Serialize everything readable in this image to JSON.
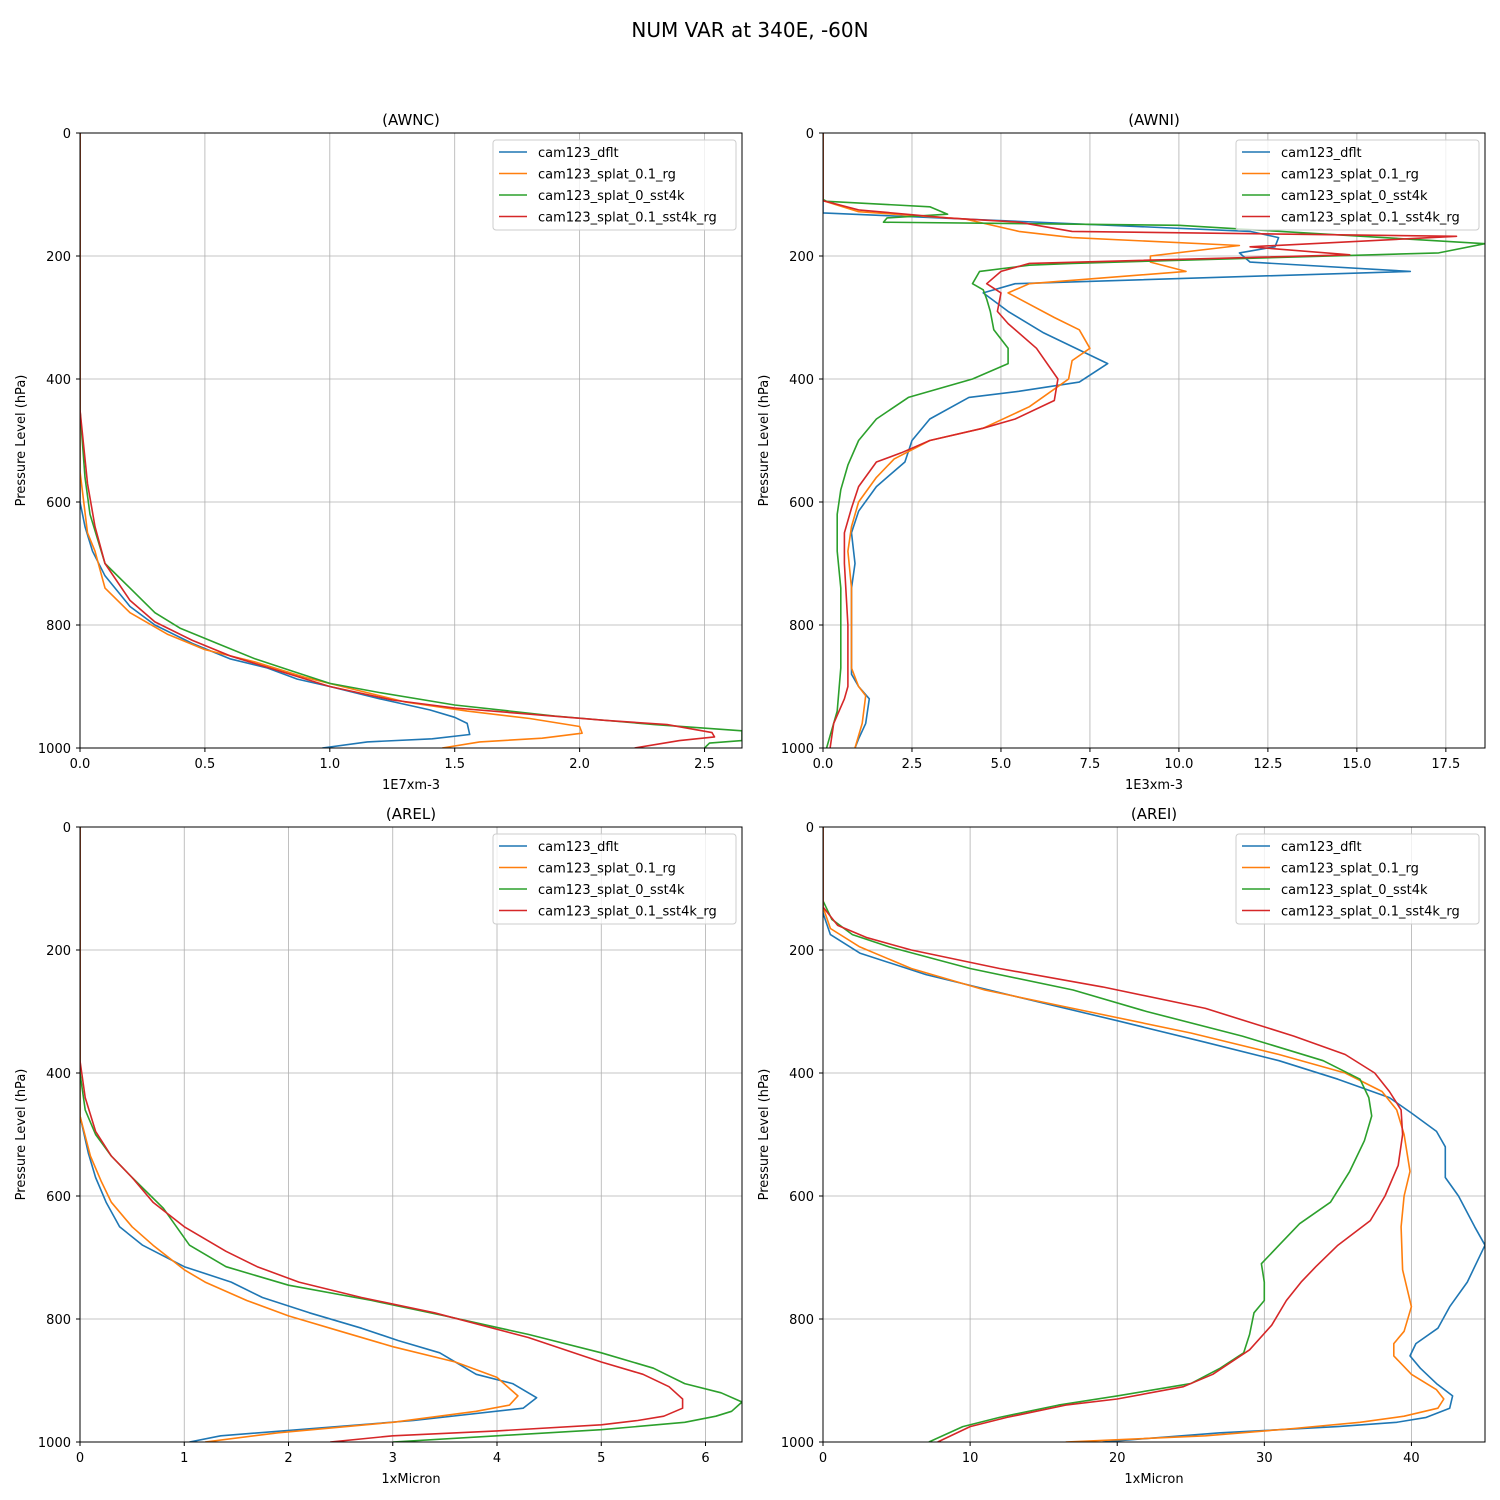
{
  "figure": {
    "suptitle": "NUM VAR at 340E, -60N"
  },
  "series_colors": {
    "cam123_dflt": "#1f77b4",
    "cam123_splat_0.1_rg": "#ff7f0e",
    "cam123_splat_0_sst4k": "#2ca02c",
    "cam123_splat_0.1_sst4k_rg": "#d62728"
  },
  "chart_data": [
    {
      "type": "line",
      "title": "(AWNC)",
      "xlabel": "1E7xm-3",
      "ylabel": "Pressure Level (hPa)",
      "xlim": [
        0,
        2.65
      ],
      "ylim": [
        1000,
        0
      ],
      "xticks": [
        0.0,
        0.5,
        1.0,
        1.5,
        2.0,
        2.5
      ],
      "xtick_labels": [
        "0.0",
        "0.5",
        "1.0",
        "1.5",
        "2.0",
        "2.5"
      ],
      "yticks": [
        0,
        200,
        400,
        600,
        800,
        1000
      ],
      "ytick_labels": [
        "0",
        "200",
        "400",
        "600",
        "800",
        "1000"
      ],
      "grid": true,
      "legend": "upper right",
      "series": [
        {
          "name": "cam123_dflt",
          "x": [
            0,
            0,
            0,
            0.02,
            0.05,
            0.1,
            0.2,
            0.3,
            0.45,
            0.6,
            0.75,
            0.87,
            1.0,
            1.2,
            1.4,
            1.5,
            1.55,
            1.56,
            1.41,
            1.15,
            0.97
          ],
          "y": [
            0,
            500,
            600,
            640,
            680,
            720,
            770,
            800,
            830,
            855,
            870,
            888,
            900,
            920,
            938,
            950,
            960,
            978,
            985,
            990,
            1000
          ]
        },
        {
          "name": "cam123_splat_0.1_rg",
          "x": [
            0,
            0,
            0.03,
            0.06,
            0.1,
            0.2,
            0.35,
            0.5,
            0.7,
            0.9,
            1.1,
            1.3,
            1.55,
            1.8,
            2.0,
            2.01,
            1.85,
            1.6,
            1.45
          ],
          "y": [
            0,
            550,
            650,
            680,
            740,
            780,
            815,
            840,
            860,
            885,
            905,
            925,
            940,
            952,
            965,
            976,
            984,
            990,
            1000
          ]
        },
        {
          "name": "cam123_splat_0_sst4k",
          "x": [
            0,
            0,
            0.02,
            0.04,
            0.07,
            0.1,
            0.2,
            0.3,
            0.4,
            0.55,
            0.7,
            0.85,
            1.0,
            1.2,
            1.5,
            1.9,
            2.3,
            2.65,
            2.65,
            2.52,
            2.5
          ],
          "y": [
            0,
            450,
            560,
            620,
            660,
            700,
            740,
            780,
            805,
            830,
            855,
            875,
            895,
            910,
            930,
            948,
            962,
            972,
            988,
            992,
            1000
          ]
        },
        {
          "name": "cam123_splat_0.1_sst4k_rg",
          "x": [
            0,
            0,
            0.03,
            0.06,
            0.1,
            0.2,
            0.3,
            0.45,
            0.6,
            0.8,
            1.0,
            1.25,
            1.5,
            1.8,
            2.1,
            2.35,
            2.53,
            2.54,
            2.4,
            2.22
          ],
          "y": [
            0,
            450,
            570,
            640,
            700,
            760,
            795,
            825,
            850,
            875,
            900,
            922,
            935,
            945,
            955,
            962,
            975,
            982,
            988,
            1000
          ]
        }
      ]
    },
    {
      "type": "line",
      "title": "(AWNI)",
      "xlabel": "1E3xm-3",
      "ylabel": "Pressure Level (hPa)",
      "xlim": [
        0,
        18.6
      ],
      "ylim": [
        1000,
        0
      ],
      "xticks": [
        0.0,
        2.5,
        5.0,
        7.5,
        10.0,
        12.5,
        15.0,
        17.5
      ],
      "xtick_labels": [
        "0.0",
        "2.5",
        "5.0",
        "7.5",
        "10.0",
        "12.5",
        "15.0",
        "17.5"
      ],
      "yticks": [
        0,
        200,
        400,
        600,
        800,
        1000
      ],
      "ytick_labels": [
        "0",
        "200",
        "400",
        "600",
        "800",
        "1000"
      ],
      "grid": true,
      "legend": "upper right",
      "series": [
        {
          "name": "cam123_dflt",
          "x": [
            0,
            0,
            12.0,
            12.8,
            12.7,
            11.7,
            12.0,
            16.5,
            5.4,
            4.5,
            5.2,
            6.2,
            8.0,
            7.2,
            5.5,
            4.1,
            3.0,
            2.5,
            2.3,
            1.5,
            1.0,
            0.8,
            0.9,
            0.8,
            0.8,
            1.0,
            1.3,
            1.2,
            1.0,
            0.9
          ],
          "y": [
            0,
            130,
            160,
            170,
            185,
            195,
            210,
            225,
            245,
            260,
            290,
            325,
            375,
            405,
            420,
            430,
            465,
            500,
            535,
            575,
            615,
            650,
            700,
            740,
            880,
            900,
            920,
            960,
            985,
            1000
          ]
        },
        {
          "name": "cam123_splat_0.1_rg",
          "x": [
            0,
            0,
            1.0,
            4.0,
            5.5,
            7.0,
            11.7,
            9.2,
            9.2,
            10.2,
            5.8,
            5.2,
            6.5,
            7.2,
            7.5,
            7.0,
            6.9,
            5.8,
            4.5,
            3.0,
            2.0,
            1.5,
            1.0,
            0.8,
            0.7,
            0.8,
            0.8,
            1.0,
            1.2,
            1.1,
            0.9
          ],
          "y": [
            0,
            110,
            128,
            140,
            160,
            170,
            183,
            200,
            210,
            225,
            245,
            260,
            300,
            320,
            350,
            370,
            400,
            445,
            480,
            500,
            530,
            560,
            600,
            640,
            680,
            740,
            870,
            900,
            915,
            960,
            1000
          ]
        },
        {
          "name": "cam123_splat_0_sst4k",
          "x": [
            0,
            0,
            0.1,
            3.0,
            3.5,
            1.8,
            1.7,
            10.0,
            18.6,
            17.3,
            7.0,
            5.8,
            4.4,
            4.2,
            4.5,
            4.6,
            4.7,
            4.8,
            5.2,
            5.2,
            4.2,
            2.4,
            1.5,
            1.0,
            0.7,
            0.5,
            0.4,
            0.4,
            0.5,
            0.5,
            0.5,
            0.4,
            0.2,
            0.1
          ],
          "y": [
            0,
            108,
            111,
            120,
            132,
            138,
            145,
            150,
            180,
            195,
            212,
            215,
            225,
            245,
            255,
            270,
            290,
            320,
            350,
            375,
            400,
            430,
            465,
            500,
            540,
            580,
            620,
            680,
            740,
            800,
            870,
            940,
            980,
            1000
          ]
        },
        {
          "name": "cam123_splat_0.1_sst4k_rg",
          "x": [
            0,
            0,
            1.0,
            3.5,
            5.5,
            7.0,
            17.8,
            12.0,
            14.8,
            5.8,
            5.0,
            4.6,
            5.0,
            4.9,
            5.2,
            6.0,
            6.6,
            6.5,
            5.4,
            4.5,
            3.0,
            2.2,
            1.5,
            1.0,
            0.8,
            0.6,
            0.6,
            0.7,
            0.7,
            0.6,
            0.3,
            0.2
          ],
          "y": [
            0,
            110,
            125,
            138,
            145,
            160,
            168,
            185,
            198,
            212,
            225,
            245,
            260,
            290,
            310,
            350,
            400,
            435,
            465,
            480,
            500,
            520,
            535,
            575,
            610,
            650,
            700,
            800,
            900,
            920,
            960,
            1000
          ]
        }
      ]
    },
    {
      "type": "line",
      "title": "(AREL)",
      "xlabel": "1xMicron",
      "ylabel": "Pressure Level (hPa)",
      "xlim": [
        0,
        6.35
      ],
      "ylim": [
        1000,
        0
      ],
      "xticks": [
        0,
        1,
        2,
        3,
        4,
        5,
        6
      ],
      "xtick_labels": [
        "0",
        "1",
        "2",
        "3",
        "4",
        "5",
        "6"
      ],
      "yticks": [
        0,
        200,
        400,
        600,
        800,
        1000
      ],
      "ytick_labels": [
        "0",
        "200",
        "400",
        "600",
        "800",
        "1000"
      ],
      "grid": true,
      "legend": "upper right",
      "series": [
        {
          "name": "cam123_dflt",
          "x": [
            0,
            0,
            0.08,
            0.15,
            0.25,
            0.38,
            0.6,
            1.0,
            1.45,
            1.75,
            2.2,
            2.7,
            3.05,
            3.45,
            3.65,
            3.8,
            4.15,
            4.38,
            4.25,
            3.2,
            1.35,
            1.05
          ],
          "y": [
            0,
            470,
            530,
            570,
            610,
            650,
            680,
            715,
            740,
            765,
            790,
            815,
            835,
            855,
            875,
            890,
            905,
            928,
            945,
            965,
            990,
            1000
          ]
        },
        {
          "name": "cam123_splat_0.1_rg",
          "x": [
            0,
            0,
            0.1,
            0.2,
            0.3,
            0.5,
            0.7,
            1.0,
            1.2,
            1.6,
            2.0,
            2.5,
            3.0,
            3.6,
            4.0,
            4.2,
            4.12,
            3.8,
            3.0,
            1.9,
            1.2
          ],
          "y": [
            0,
            470,
            535,
            575,
            610,
            650,
            680,
            720,
            740,
            770,
            795,
            820,
            845,
            870,
            895,
            925,
            940,
            950,
            968,
            985,
            1000
          ]
        },
        {
          "name": "cam123_splat_0_sst4k",
          "x": [
            0,
            0,
            0.05,
            0.15,
            0.3,
            0.5,
            0.8,
            1.05,
            1.4,
            2.0,
            2.8,
            3.5,
            4.3,
            5.0,
            5.5,
            5.8,
            6.15,
            6.35,
            6.25,
            6.1,
            5.8,
            5.0,
            4.0,
            3.0
          ],
          "y": [
            0,
            400,
            460,
            500,
            535,
            570,
            620,
            680,
            715,
            745,
            770,
            795,
            825,
            855,
            880,
            905,
            920,
            935,
            950,
            958,
            968,
            980,
            990,
            1000
          ]
        },
        {
          "name": "cam123_splat_0.1_sst4k_rg",
          "x": [
            0,
            0,
            0.05,
            0.15,
            0.3,
            0.5,
            0.7,
            1.0,
            1.4,
            1.7,
            2.1,
            2.7,
            3.4,
            4.3,
            5.0,
            5.4,
            5.65,
            5.78,
            5.78,
            5.6,
            5.35,
            5.0,
            4.0,
            3.0,
            2.4
          ],
          "y": [
            0,
            380,
            440,
            495,
            535,
            570,
            610,
            650,
            690,
            715,
            740,
            765,
            790,
            830,
            870,
            890,
            910,
            930,
            945,
            958,
            965,
            972,
            982,
            990,
            1000
          ]
        }
      ]
    },
    {
      "type": "line",
      "title": "(AREI)",
      "xlabel": "1xMicron",
      "ylabel": "Pressure Level (hPa)",
      "xlim": [
        0,
        45
      ],
      "ylim": [
        1000,
        0
      ],
      "xticks": [
        0,
        10,
        20,
        30,
        40
      ],
      "xtick_labels": [
        "0",
        "10",
        "20",
        "30",
        "40"
      ],
      "yticks": [
        0,
        200,
        400,
        600,
        800,
        1000
      ],
      "ytick_labels": [
        "0",
        "200",
        "400",
        "600",
        "800",
        "1000"
      ],
      "grid": true,
      "legend": "upper right",
      "series": [
        {
          "name": "cam123_dflt",
          "x": [
            0,
            0,
            0.5,
            2.5,
            7.0,
            13.0,
            20.0,
            26.0,
            31.0,
            35.0,
            38.5,
            40.0,
            41.7,
            42.3,
            42.3,
            43.2,
            44.3,
            45.0,
            43.8,
            42.6,
            41.8,
            40.3,
            39.9,
            40.6,
            41.7,
            42.8,
            42.6,
            41.0,
            39.0,
            35.0,
            27.0,
            19.0
          ],
          "y": [
            0,
            140,
            175,
            205,
            240,
            275,
            315,
            350,
            380,
            410,
            440,
            465,
            495,
            520,
            570,
            600,
            650,
            680,
            740,
            780,
            815,
            840,
            860,
            880,
            905,
            925,
            945,
            960,
            968,
            975,
            985,
            1000
          ]
        },
        {
          "name": "cam123_splat_0.1_rg",
          "x": [
            0,
            0,
            0.5,
            2.5,
            6.0,
            11.0,
            18.0,
            25.0,
            31.0,
            35.5,
            38.0,
            39.0,
            39.5,
            39.9,
            39.5,
            39.3,
            39.4,
            40.0,
            39.5,
            38.8,
            38.8,
            40.0,
            41.7,
            42.2,
            41.8,
            39.5,
            36.5,
            32.0,
            26.0,
            16.5
          ],
          "y": [
            0,
            130,
            165,
            195,
            230,
            265,
            300,
            335,
            370,
            400,
            430,
            460,
            500,
            560,
            600,
            650,
            720,
            780,
            820,
            840,
            860,
            890,
            915,
            930,
            945,
            958,
            968,
            978,
            990,
            1000
          ]
        },
        {
          "name": "cam123_splat_0_sst4k",
          "x": [
            0,
            0,
            0.6,
            2.0,
            4.5,
            10.0,
            17.0,
            22.0,
            28.5,
            34.0,
            36.5,
            37.1,
            37.3,
            36.8,
            35.8,
            34.5,
            32.4,
            31.0,
            29.8,
            30.0,
            30.0,
            29.3,
            29.0,
            28.6,
            27.0,
            25.0,
            20.0,
            16.0,
            12.0,
            9.5,
            7.2
          ],
          "y": [
            0,
            120,
            150,
            175,
            195,
            230,
            265,
            300,
            340,
            380,
            410,
            440,
            470,
            510,
            560,
            610,
            645,
            680,
            710,
            740,
            770,
            790,
            825,
            855,
            880,
            905,
            925,
            940,
            960,
            975,
            1000
          ]
        },
        {
          "name": "cam123_splat_0.1_sst4k_rg",
          "x": [
            0,
            0,
            1.0,
            3.0,
            6.0,
            12.0,
            19.0,
            26.0,
            32.0,
            35.5,
            37.5,
            38.5,
            39.3,
            39.4,
            39.1,
            38.2,
            37.2,
            35.0,
            33.5,
            32.5,
            31.5,
            30.5,
            29.0,
            26.5,
            24.5,
            20.0,
            16.5,
            12.5,
            10.0,
            7.8
          ],
          "y": [
            0,
            130,
            160,
            180,
            200,
            230,
            260,
            295,
            340,
            370,
            400,
            430,
            460,
            500,
            550,
            600,
            640,
            680,
            715,
            740,
            770,
            810,
            850,
            890,
            910,
            930,
            940,
            960,
            975,
            1000
          ]
        }
      ]
    }
  ]
}
